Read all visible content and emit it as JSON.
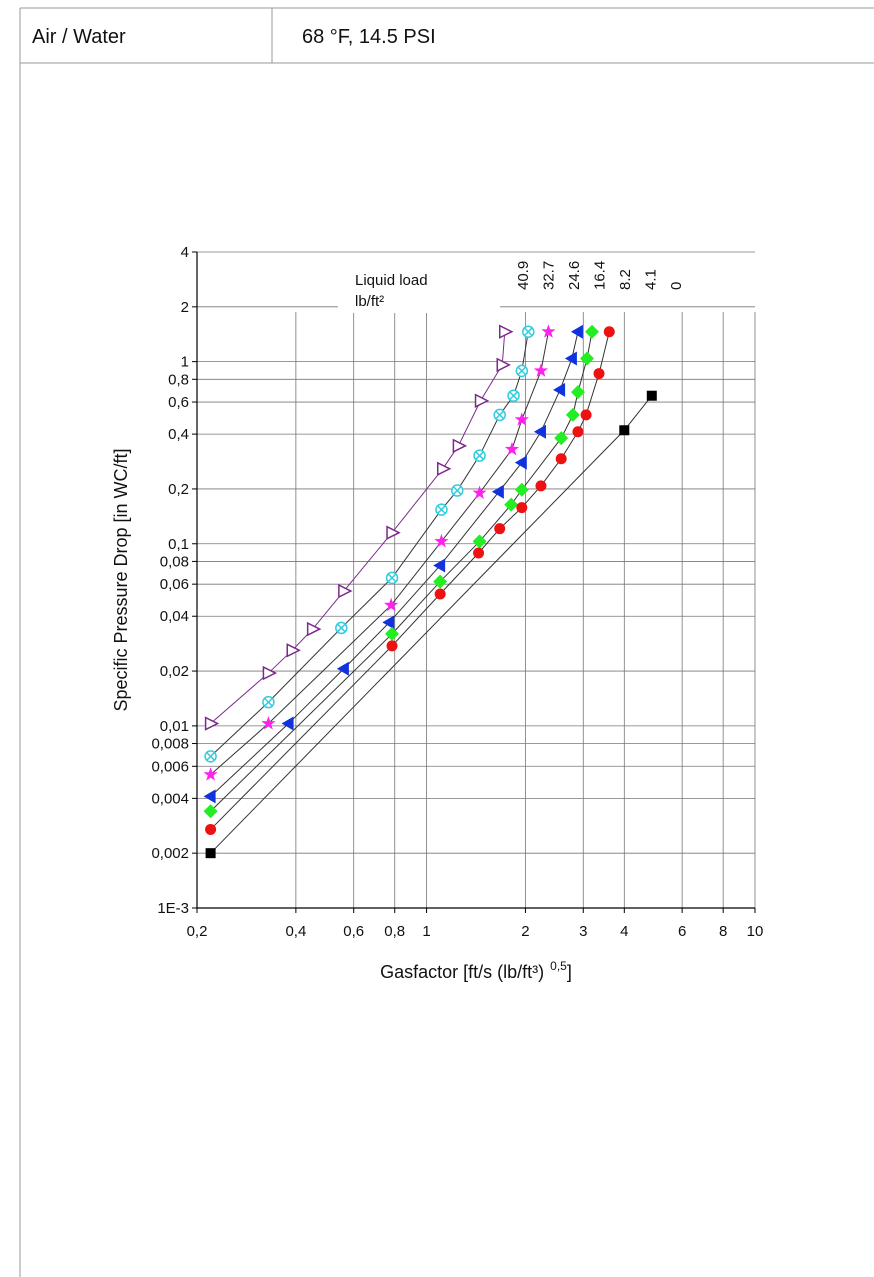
{
  "header": {
    "medium": "Air / Water",
    "conditions": "68 °F, 14.5 PSI"
  },
  "chart_data": {
    "type": "scatter",
    "ylabel": "Specific Pressure Drop [in WC/ft]",
    "xlabel": {
      "text": "Gasfactor [ft/s (lb/ft³)",
      "superscript": "0,5",
      "end": "]"
    },
    "legend_title": "Liquid load",
    "legend_unit": "lb/ft²",
    "xscale": "log",
    "yscale": "log",
    "grid": true,
    "xlim": [
      0.2,
      10
    ],
    "ylim": [
      0.001,
      4
    ],
    "xticks": [
      {
        "value": 0.2,
        "label": "0,2"
      },
      {
        "value": 0.4,
        "label": "0,4"
      },
      {
        "value": 0.6,
        "label": "0,6"
      },
      {
        "value": 0.8,
        "label": "0,8"
      },
      1,
      2,
      3,
      4,
      6,
      8,
      10
    ],
    "yticks": [
      {
        "value": 0.001,
        "label": "1E-3"
      },
      {
        "value": 0.002,
        "label": "0,002"
      },
      {
        "value": 0.004,
        "label": "0,004"
      },
      {
        "value": 0.006,
        "label": "0,006"
      },
      {
        "value": 0.008,
        "label": "0,008"
      },
      {
        "value": 0.01,
        "label": "0,01"
      },
      {
        "value": 0.02,
        "label": "0,02"
      },
      {
        "value": 0.04,
        "label": "0,04"
      },
      {
        "value": 0.06,
        "label": "0,06"
      },
      {
        "value": 0.08,
        "label": "0,08"
      },
      {
        "value": 0.1,
        "label": "0,1"
      },
      {
        "value": 0.2,
        "label": "0,2"
      },
      {
        "value": 0.4,
        "label": "0,4"
      },
      {
        "value": 0.6,
        "label": "0,6"
      },
      {
        "value": 0.8,
        "label": "0,8"
      },
      1,
      2,
      4
    ],
    "series": [
      {
        "name": "40.9",
        "color": "#7b2a8c",
        "line_color": "#7b2a8c",
        "marker": "triangle-right-open",
        "x": [
          0.22,
          0.33,
          0.39,
          0.45,
          0.56,
          0.785,
          1.12,
          1.25,
          1.46,
          1.7,
          1.73
        ],
        "values": [
          0.0103,
          0.0195,
          0.026,
          0.034,
          0.055,
          0.115,
          0.258,
          0.345,
          0.61,
          0.96,
          1.46
        ]
      },
      {
        "name": "32.7",
        "color": "#33ccdd",
        "line_color": "#333333",
        "marker": "circle-x",
        "x": [
          0.22,
          0.33,
          0.55,
          0.785,
          1.11,
          1.24,
          1.45,
          1.67,
          1.84,
          1.95,
          2.04
        ],
        "values": [
          0.0068,
          0.0135,
          0.0345,
          0.065,
          0.154,
          0.196,
          0.305,
          0.51,
          0.65,
          0.89,
          1.46
        ]
      },
      {
        "name": "24.6",
        "color": "#ff22ee",
        "line_color": "#333333",
        "marker": "star",
        "x": [
          0.22,
          0.33,
          0.78,
          1.11,
          1.45,
          1.82,
          1.95,
          2.23,
          2.35
        ],
        "values": [
          0.0054,
          0.0103,
          0.046,
          0.103,
          0.19,
          0.33,
          0.48,
          0.89,
          1.46
        ]
      },
      {
        "name": "16.4",
        "color": "#1133dd",
        "line_color": "#333333",
        "marker": "triangle-left",
        "x": [
          0.22,
          0.38,
          0.56,
          0.77,
          1.1,
          1.66,
          1.95,
          2.23,
          2.55,
          2.77,
          2.89
        ],
        "values": [
          0.0041,
          0.0103,
          0.0206,
          0.037,
          0.076,
          0.193,
          0.279,
          0.412,
          0.7,
          1.04,
          1.46
        ]
      },
      {
        "name": "8.2",
        "color": "#22ee22",
        "line_color": "#333333",
        "marker": "diamond",
        "x": [
          0.22,
          0.785,
          1.1,
          1.45,
          1.81,
          1.95,
          2.57,
          2.79,
          2.89,
          3.08,
          3.19
        ],
        "values": [
          0.0034,
          0.032,
          0.062,
          0.103,
          0.164,
          0.198,
          0.38,
          0.51,
          0.68,
          1.04,
          1.46
        ]
      },
      {
        "name": "4.1",
        "color": "#ee1111",
        "line_color": "#333333",
        "marker": "circle",
        "x": [
          0.22,
          0.785,
          1.1,
          1.44,
          1.67,
          1.95,
          2.23,
          2.57,
          2.89,
          3.06,
          3.35,
          3.6
        ],
        "values": [
          0.0027,
          0.0275,
          0.053,
          0.089,
          0.121,
          0.158,
          0.208,
          0.293,
          0.412,
          0.51,
          0.86,
          1.46
        ]
      },
      {
        "name": "0",
        "color": "#000000",
        "line_color": "#333333",
        "marker": "square",
        "x": [
          0.22,
          4,
          4.85
        ],
        "values": [
          0.002,
          0.42,
          0.65
        ]
      }
    ]
  }
}
